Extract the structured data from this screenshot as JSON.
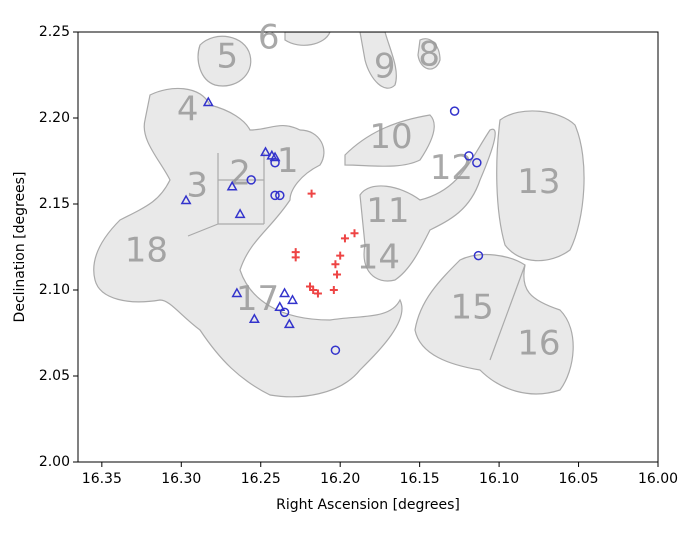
{
  "chart_data": {
    "type": "scatter",
    "xlabel": "Right Ascension [degrees]",
    "ylabel": "Declination [degrees]",
    "xlim": [
      16.365,
      16.0
    ],
    "ylim": [
      2.0,
      2.25
    ],
    "xticks": [
      16.35,
      {
        "value": 16.3,
        "label": "16.30"
      },
      16.25,
      {
        "value": 16.2,
        "label": "16.20"
      },
      16.15,
      {
        "value": 16.1,
        "label": "16.10"
      },
      16.05,
      {
        "value": 16.0,
        "label": "16.00"
      }
    ],
    "yticks": [
      {
        "value": 2.0,
        "label": "2.00"
      },
      2.05,
      {
        "value": 2.1,
        "label": "2.10"
      },
      2.15,
      {
        "value": 2.2,
        "label": "2.20"
      },
      2.25
    ],
    "series": [
      {
        "marker": "triangle",
        "color": "#3333cc",
        "x": [
          16.283,
          16.297,
          16.268,
          16.263,
          16.247,
          16.243,
          16.241,
          16.265,
          16.254,
          16.235,
          16.23,
          16.238,
          16.232
        ],
        "y": [
          2.209,
          2.152,
          2.16,
          2.144,
          2.18,
          2.178,
          2.177,
          2.098,
          2.083,
          2.098,
          2.094,
          2.09,
          2.08
        ]
      },
      {
        "marker": "circle",
        "color": "#3333cc",
        "x": [
          16.128,
          16.119,
          16.114,
          16.256,
          16.241,
          16.241,
          16.238,
          16.235,
          16.203,
          16.113
        ],
        "y": [
          2.204,
          2.178,
          2.174,
          2.164,
          2.174,
          2.155,
          2.155,
          2.087,
          2.065,
          2.12
        ]
      },
      {
        "marker": "plus",
        "color": "#ee4444",
        "x": [
          16.218,
          16.228,
          16.228,
          16.219,
          16.217,
          16.214,
          16.203,
          16.2,
          16.197,
          16.191,
          16.204,
          16.202
        ],
        "y": [
          2.156,
          2.122,
          2.119,
          2.102,
          2.1,
          2.098,
          2.115,
          2.12,
          2.13,
          2.133,
          2.1,
          2.109
        ]
      }
    ],
    "annotations": [
      {
        "text": "1",
        "x": 16.233,
        "y": 2.174
      },
      {
        "text": "2",
        "x": 16.263,
        "y": 2.167
      },
      {
        "text": "3",
        "x": 16.29,
        "y": 2.16
      },
      {
        "text": "4",
        "x": 16.296,
        "y": 2.204
      },
      {
        "text": "5",
        "x": 16.271,
        "y": 2.235
      },
      {
        "text": "6",
        "x": 16.245,
        "y": 2.246
      },
      {
        "text": "8",
        "x": 16.144,
        "y": 2.236
      },
      {
        "text": "9",
        "x": 16.172,
        "y": 2.229
      },
      {
        "text": "10",
        "x": 16.168,
        "y": 2.188
      },
      {
        "text": "11",
        "x": 16.17,
        "y": 2.145
      },
      {
        "text": "12",
        "x": 16.13,
        "y": 2.17
      },
      {
        "text": "13",
        "x": 16.075,
        "y": 2.162
      },
      {
        "text": "14",
        "x": 16.176,
        "y": 2.118
      },
      {
        "text": "15",
        "x": 16.117,
        "y": 2.089
      },
      {
        "text": "16",
        "x": 16.075,
        "y": 2.068
      },
      {
        "text": "17",
        "x": 16.252,
        "y": 2.094
      },
      {
        "text": "18",
        "x": 16.322,
        "y": 2.122
      }
    ]
  }
}
